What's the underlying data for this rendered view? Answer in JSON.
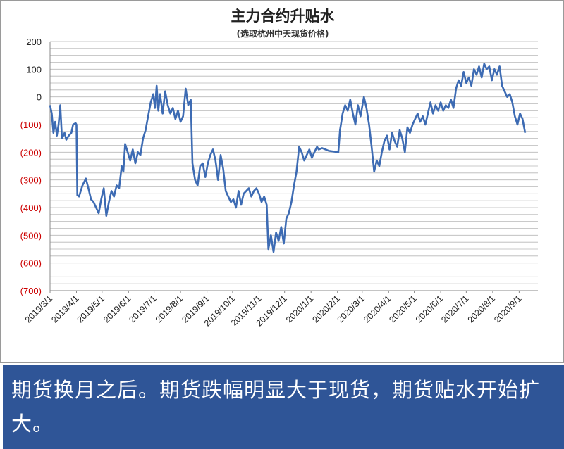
{
  "chart_data": {
    "type": "line",
    "title": "主力合约升贴水",
    "subtitle": "(选取杭州中天现货价格)",
    "xlabel": "",
    "ylabel": "",
    "ylim": [
      -700,
      200
    ],
    "y_tick_values": [
      200,
      100,
      0,
      -100,
      -200,
      -300,
      -400,
      -500,
      -600,
      -700
    ],
    "y_tick_labels": [
      "200",
      "100",
      "0",
      "(100)",
      "(200)",
      "(300)",
      "(400)",
      "(500)",
      "(600)",
      "(700)"
    ],
    "negative_label_color": "#cc0000",
    "positive_label_color": "#222222",
    "x_tick_labels": [
      "2019/3/1",
      "2019/4/1",
      "2019/5/1",
      "2019/6/1",
      "2019/7/1",
      "2019/8/1",
      "2019/9/1",
      "2019/10/1",
      "2019/11/1",
      "2019/12/1",
      "2020/1/1",
      "2020/2/1",
      "2020/3/1",
      "2020/4/1",
      "2020/5/1",
      "2020/6/1",
      "2020/7/1",
      "2020/8/1",
      "2020/9/1"
    ],
    "x_start": "2019-03-01",
    "x_end": "2020-09-23",
    "grid": true,
    "line_color": "#3d6bb3",
    "series": [
      {
        "points": [
          [
            "2019-03-01",
            -30
          ],
          [
            "2019-03-03",
            -60
          ],
          [
            "2019-03-05",
            -130
          ],
          [
            "2019-03-07",
            -90
          ],
          [
            "2019-03-09",
            -140
          ],
          [
            "2019-03-11",
            -100
          ],
          [
            "2019-03-13",
            -30
          ],
          [
            "2019-03-15",
            -150
          ],
          [
            "2019-03-18",
            -130
          ],
          [
            "2019-03-20",
            -155
          ],
          [
            "2019-03-23",
            -140
          ],
          [
            "2019-03-26",
            -130
          ],
          [
            "2019-03-28",
            -100
          ],
          [
            "2019-03-31",
            -95
          ],
          [
            "2019-04-01",
            -100
          ],
          [
            "2019-04-02",
            -355
          ],
          [
            "2019-04-04",
            -360
          ],
          [
            "2019-04-08",
            -320
          ],
          [
            "2019-04-12",
            -295
          ],
          [
            "2019-04-15",
            -330
          ],
          [
            "2019-04-18",
            -370
          ],
          [
            "2019-04-21",
            -380
          ],
          [
            "2019-04-24",
            -400
          ],
          [
            "2019-04-27",
            -420
          ],
          [
            "2019-04-30",
            -370
          ],
          [
            "2019-05-03",
            -330
          ],
          [
            "2019-05-06",
            -430
          ],
          [
            "2019-05-09",
            -380
          ],
          [
            "2019-05-12",
            -340
          ],
          [
            "2019-05-15",
            -360
          ],
          [
            "2019-05-18",
            -320
          ],
          [
            "2019-05-21",
            -330
          ],
          [
            "2019-05-24",
            -250
          ],
          [
            "2019-05-26",
            -270
          ],
          [
            "2019-05-28",
            -170
          ],
          [
            "2019-05-31",
            -200
          ],
          [
            "2019-06-03",
            -230
          ],
          [
            "2019-06-06",
            -190
          ],
          [
            "2019-06-09",
            -240
          ],
          [
            "2019-06-12",
            -200
          ],
          [
            "2019-06-15",
            -210
          ],
          [
            "2019-06-18",
            -150
          ],
          [
            "2019-06-21",
            -120
          ],
          [
            "2019-06-24",
            -70
          ],
          [
            "2019-06-27",
            -20
          ],
          [
            "2019-06-30",
            10
          ],
          [
            "2019-07-02",
            -40
          ],
          [
            "2019-07-04",
            40
          ],
          [
            "2019-07-06",
            -50
          ],
          [
            "2019-07-08",
            10
          ],
          [
            "2019-07-11",
            -60
          ],
          [
            "2019-07-14",
            20
          ],
          [
            "2019-07-17",
            -30
          ],
          [
            "2019-07-20",
            -60
          ],
          [
            "2019-07-23",
            -40
          ],
          [
            "2019-07-26",
            -80
          ],
          [
            "2019-07-29",
            -50
          ],
          [
            "2019-08-01",
            -90
          ],
          [
            "2019-08-04",
            -70
          ],
          [
            "2019-08-07",
            30
          ],
          [
            "2019-08-10",
            -30
          ],
          [
            "2019-08-13",
            -10
          ],
          [
            "2019-08-15",
            -240
          ],
          [
            "2019-08-18",
            -300
          ],
          [
            "2019-08-21",
            -320
          ],
          [
            "2019-08-24",
            -250
          ],
          [
            "2019-08-27",
            -240
          ],
          [
            "2019-08-30",
            -290
          ],
          [
            "2019-09-02",
            -240
          ],
          [
            "2019-09-05",
            -210
          ],
          [
            "2019-09-08",
            -190
          ],
          [
            "2019-09-11",
            -230
          ],
          [
            "2019-09-14",
            -300
          ],
          [
            "2019-09-17",
            -210
          ],
          [
            "2019-09-20",
            -260
          ],
          [
            "2019-09-23",
            -340
          ],
          [
            "2019-09-26",
            -360
          ],
          [
            "2019-09-29",
            -380
          ],
          [
            "2019-10-02",
            -370
          ],
          [
            "2019-10-05",
            -400
          ],
          [
            "2019-10-08",
            -340
          ],
          [
            "2019-10-11",
            -390
          ],
          [
            "2019-10-14",
            -350
          ],
          [
            "2019-10-17",
            -340
          ],
          [
            "2019-10-20",
            -330
          ],
          [
            "2019-10-23",
            -360
          ],
          [
            "2019-10-26",
            -340
          ],
          [
            "2019-10-29",
            -330
          ],
          [
            "2019-11-01",
            -350
          ],
          [
            "2019-11-04",
            -380
          ],
          [
            "2019-11-07",
            -360
          ],
          [
            "2019-11-10",
            -390
          ],
          [
            "2019-11-12",
            -550
          ],
          [
            "2019-11-15",
            -500
          ],
          [
            "2019-11-18",
            -560
          ],
          [
            "2019-11-21",
            -490
          ],
          [
            "2019-11-24",
            -520
          ],
          [
            "2019-11-27",
            -470
          ],
          [
            "2019-11-30",
            -530
          ],
          [
            "2019-12-03",
            -440
          ],
          [
            "2019-12-06",
            -420
          ],
          [
            "2019-12-09",
            -380
          ],
          [
            "2019-12-12",
            -320
          ],
          [
            "2019-12-15",
            -270
          ],
          [
            "2019-12-18",
            -180
          ],
          [
            "2019-12-21",
            -200
          ],
          [
            "2019-12-24",
            -230
          ],
          [
            "2019-12-27",
            -210
          ],
          [
            "2019-12-30",
            -190
          ],
          [
            "2020-01-02",
            -220
          ],
          [
            "2020-01-05",
            -200
          ],
          [
            "2020-01-08",
            -180
          ],
          [
            "2020-01-10",
            -190
          ],
          [
            "2020-01-14",
            -185
          ],
          [
            "2020-01-18",
            -190
          ],
          [
            "2020-01-22",
            -195
          ],
          [
            "2020-02-02",
            -200
          ],
          [
            "2020-02-04",
            -120
          ],
          [
            "2020-02-07",
            -60
          ],
          [
            "2020-02-10",
            -30
          ],
          [
            "2020-02-13",
            -50
          ],
          [
            "2020-02-16",
            -10
          ],
          [
            "2020-02-19",
            -60
          ],
          [
            "2020-02-22",
            -100
          ],
          [
            "2020-02-25",
            -30
          ],
          [
            "2020-02-28",
            -70
          ],
          [
            "2020-03-03",
            0
          ],
          [
            "2020-03-06",
            -40
          ],
          [
            "2020-03-09",
            -100
          ],
          [
            "2020-03-12",
            -180
          ],
          [
            "2020-03-15",
            -270
          ],
          [
            "2020-03-18",
            -230
          ],
          [
            "2020-03-21",
            -250
          ],
          [
            "2020-03-24",
            -200
          ],
          [
            "2020-03-27",
            -160
          ],
          [
            "2020-03-30",
            -140
          ],
          [
            "2020-04-02",
            -190
          ],
          [
            "2020-04-05",
            -130
          ],
          [
            "2020-04-08",
            -160
          ],
          [
            "2020-04-11",
            -180
          ],
          [
            "2020-04-14",
            -120
          ],
          [
            "2020-04-17",
            -150
          ],
          [
            "2020-04-20",
            -200
          ],
          [
            "2020-04-23",
            -110
          ],
          [
            "2020-04-26",
            -130
          ],
          [
            "2020-04-29",
            -100
          ],
          [
            "2020-05-02",
            -80
          ],
          [
            "2020-05-05",
            -60
          ],
          [
            "2020-05-08",
            -90
          ],
          [
            "2020-05-11",
            -70
          ],
          [
            "2020-05-14",
            -100
          ],
          [
            "2020-05-17",
            -60
          ],
          [
            "2020-05-20",
            -20
          ],
          [
            "2020-05-23",
            -60
          ],
          [
            "2020-05-26",
            -30
          ],
          [
            "2020-05-29",
            -50
          ],
          [
            "2020-06-01",
            -20
          ],
          [
            "2020-06-04",
            -50
          ],
          [
            "2020-06-07",
            -30
          ],
          [
            "2020-06-10",
            -40
          ],
          [
            "2020-06-13",
            -10
          ],
          [
            "2020-06-16",
            -40
          ],
          [
            "2020-06-19",
            30
          ],
          [
            "2020-06-22",
            60
          ],
          [
            "2020-06-25",
            40
          ],
          [
            "2020-06-28",
            90
          ],
          [
            "2020-07-01",
            50
          ],
          [
            "2020-07-04",
            70
          ],
          [
            "2020-07-07",
            40
          ],
          [
            "2020-07-10",
            100
          ],
          [
            "2020-07-13",
            80
          ],
          [
            "2020-07-16",
            110
          ],
          [
            "2020-07-19",
            70
          ],
          [
            "2020-07-22",
            120
          ],
          [
            "2020-07-25",
            100
          ],
          [
            "2020-07-28",
            110
          ],
          [
            "2020-07-31",
            60
          ],
          [
            "2020-08-03",
            100
          ],
          [
            "2020-08-06",
            80
          ],
          [
            "2020-08-09",
            110
          ],
          [
            "2020-08-12",
            40
          ],
          [
            "2020-08-15",
            20
          ],
          [
            "2020-08-18",
            0
          ],
          [
            "2020-08-21",
            10
          ],
          [
            "2020-08-24",
            -20
          ],
          [
            "2020-08-27",
            -70
          ],
          [
            "2020-08-30",
            -100
          ],
          [
            "2020-09-02",
            -60
          ],
          [
            "2020-09-05",
            -80
          ],
          [
            "2020-09-08",
            -130
          ]
        ]
      }
    ]
  },
  "caption": {
    "text": "期货换月之后。期货跌幅明显大于现货，期货贴水开始扩大。"
  }
}
